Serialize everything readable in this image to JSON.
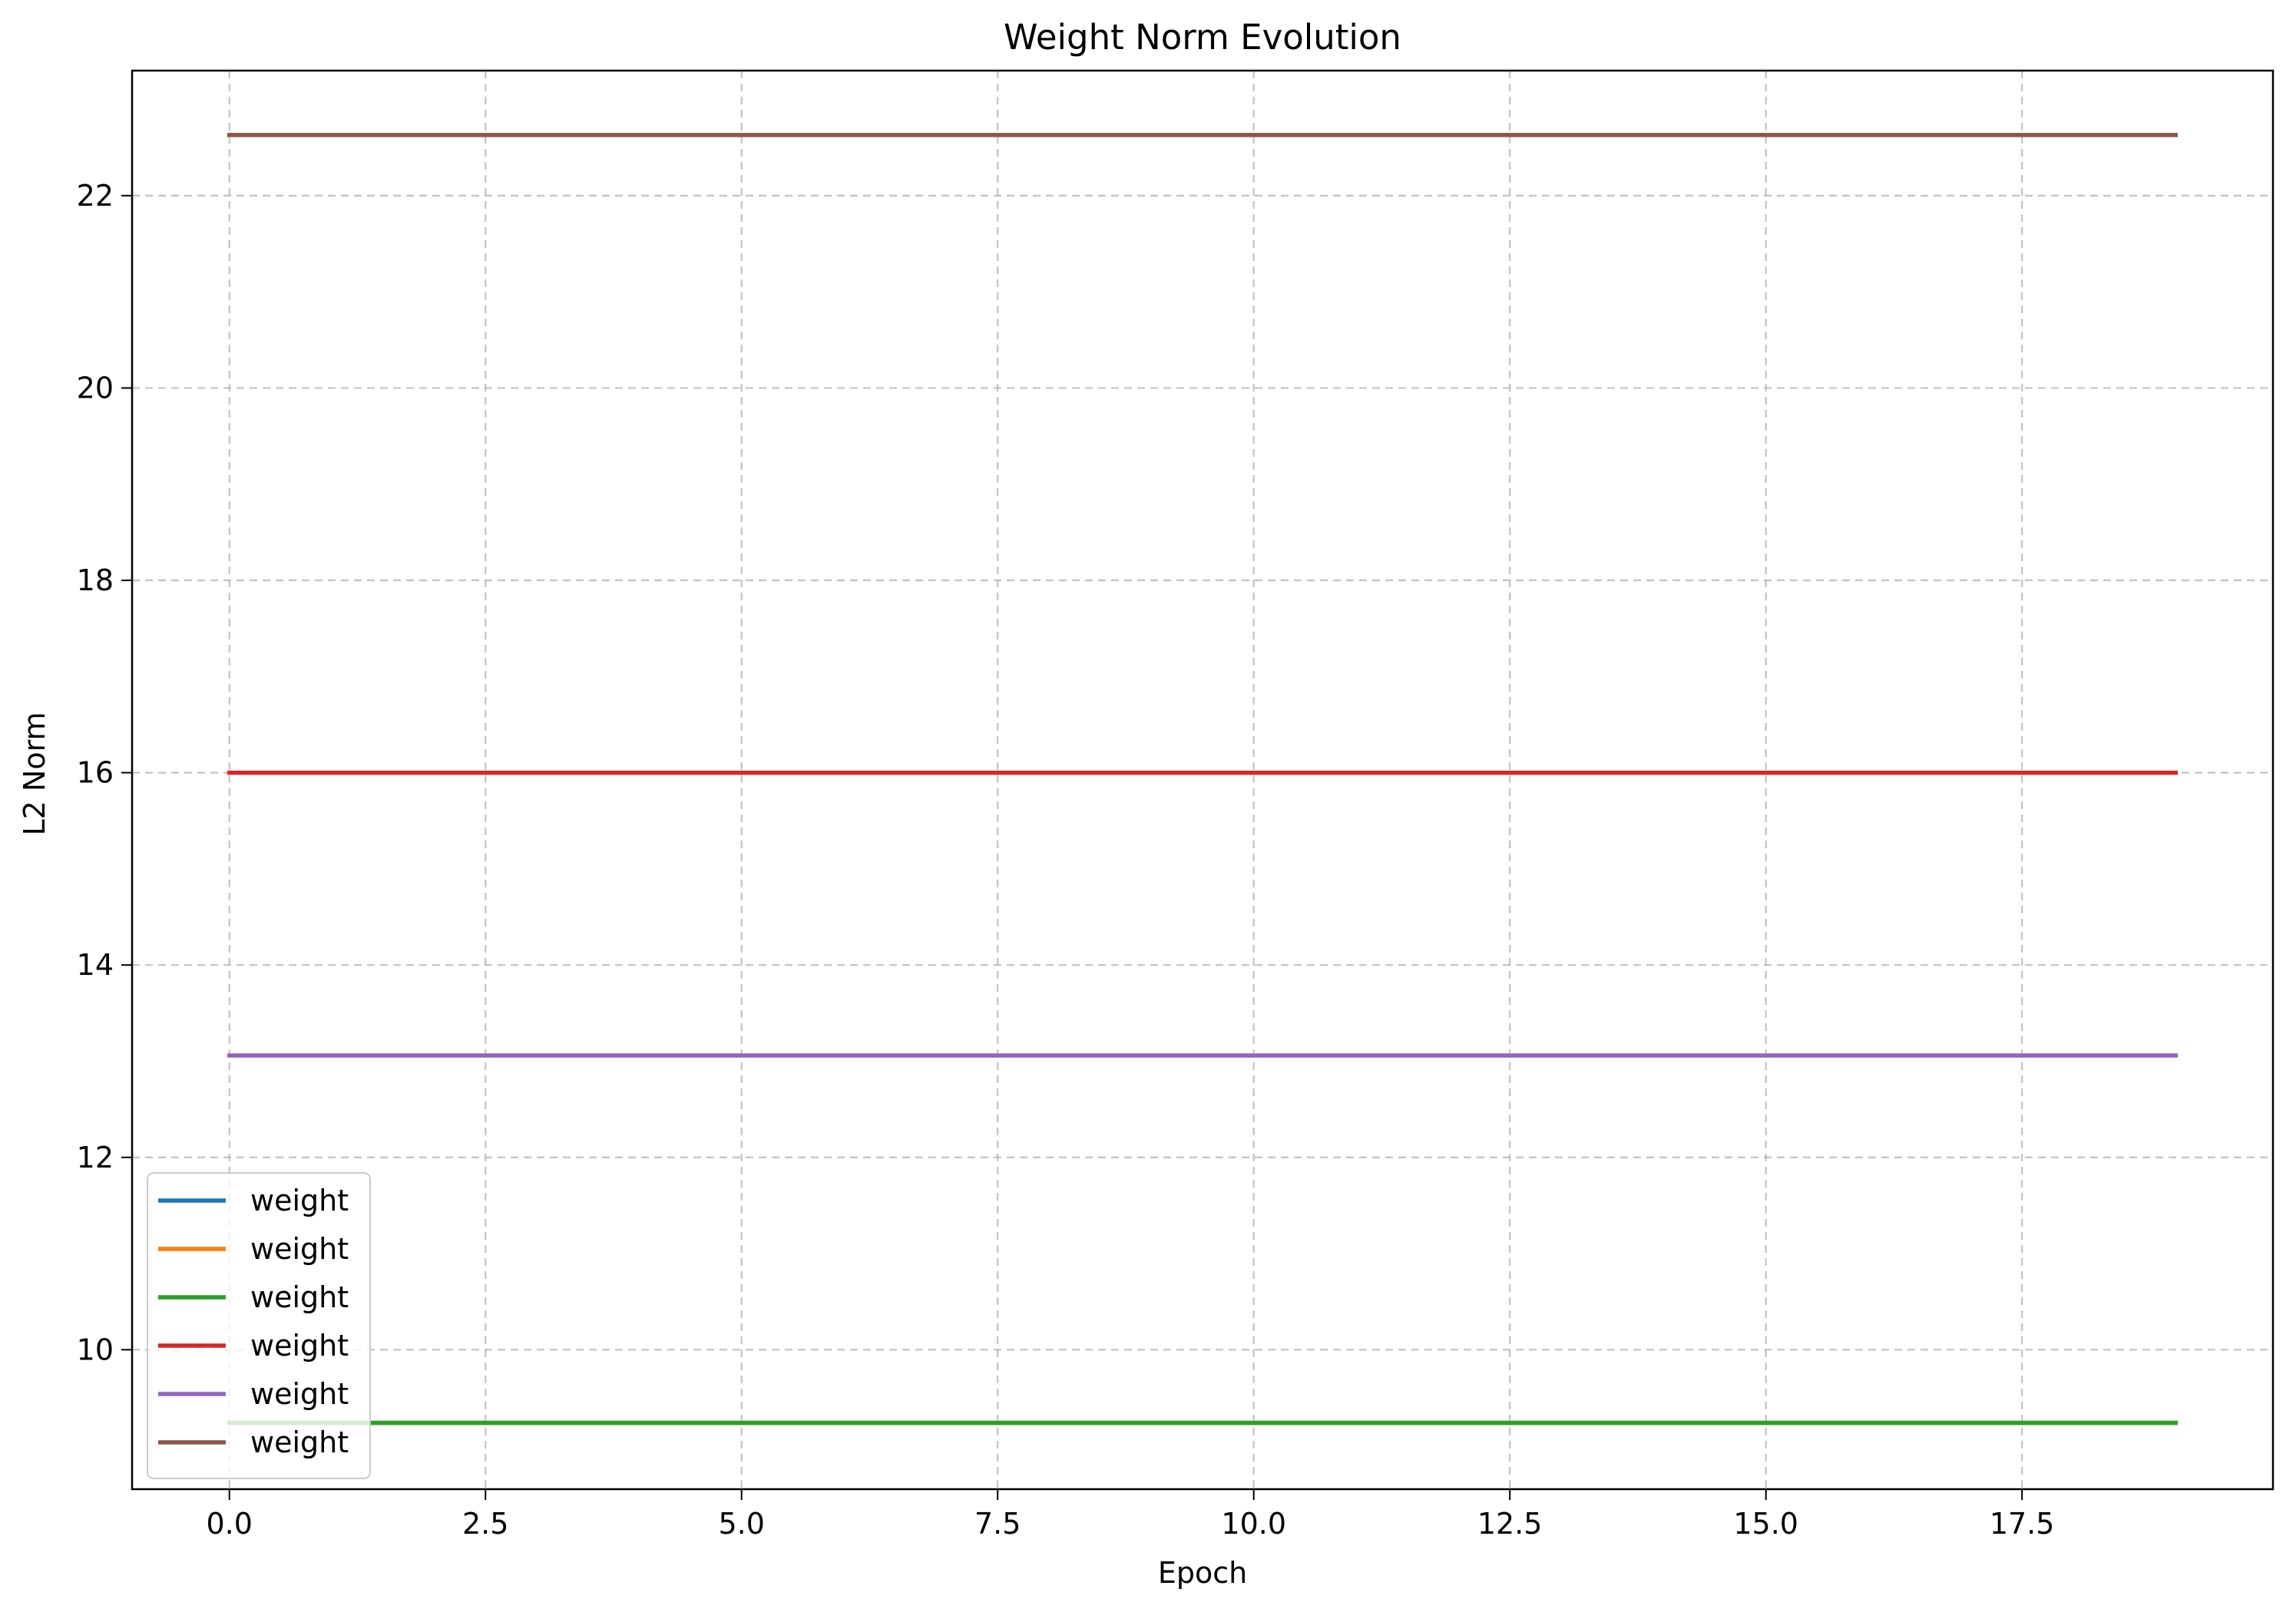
{
  "chart_data": {
    "type": "line",
    "title": "Weight Norm Evolution",
    "xlabel": "Epoch",
    "ylabel": "L2 Norm",
    "xlim": [
      -0.95,
      19.95
    ],
    "ylim": [
      8.55,
      23.3
    ],
    "xticks": [
      0.0,
      2.5,
      5.0,
      7.5,
      10.0,
      12.5,
      15.0,
      17.5
    ],
    "xtick_labels": [
      "0.0",
      "2.5",
      "5.0",
      "7.5",
      "10.0",
      "12.5",
      "15.0",
      "17.5"
    ],
    "yticks": [
      10,
      12,
      14,
      16,
      18,
      20,
      22
    ],
    "ytick_labels": [
      "10",
      "12",
      "14",
      "16",
      "18",
      "20",
      "22"
    ],
    "grid": true,
    "legend_position": "lower-left",
    "x": [
      0,
      1,
      2,
      3,
      4,
      5,
      6,
      7,
      8,
      9,
      10,
      11,
      12,
      13,
      14,
      15,
      16,
      17,
      18,
      19
    ],
    "series": [
      {
        "name": "weight",
        "color": "#1f77b4",
        "values": [
          9.24,
          9.24,
          9.24,
          9.24,
          9.24,
          9.24,
          9.24,
          9.24,
          9.24,
          9.24,
          9.24,
          9.24,
          9.24,
          9.24,
          9.24,
          9.24,
          9.24,
          9.24,
          9.24,
          9.24
        ]
      },
      {
        "name": "weight",
        "color": "#ff7f0e",
        "values": [
          9.24,
          9.24,
          9.24,
          9.24,
          9.24,
          9.24,
          9.24,
          9.24,
          9.24,
          9.24,
          9.24,
          9.24,
          9.24,
          9.24,
          9.24,
          9.24,
          9.24,
          9.24,
          9.24,
          9.24
        ]
      },
      {
        "name": "weight",
        "color": "#2ca02c",
        "values": [
          9.24,
          9.24,
          9.24,
          9.24,
          9.24,
          9.24,
          9.24,
          9.24,
          9.24,
          9.24,
          9.24,
          9.24,
          9.24,
          9.24,
          9.24,
          9.24,
          9.24,
          9.24,
          9.24,
          9.24
        ]
      },
      {
        "name": "weight",
        "color": "#d62728",
        "values": [
          16.0,
          16.0,
          16.0,
          16.0,
          16.0,
          16.0,
          16.0,
          16.0,
          16.0,
          16.0,
          16.0,
          16.0,
          16.0,
          16.0,
          16.0,
          16.0,
          16.0,
          16.0,
          16.0,
          16.0
        ]
      },
      {
        "name": "weight",
        "color": "#9467bd",
        "values": [
          13.06,
          13.06,
          13.06,
          13.06,
          13.06,
          13.06,
          13.06,
          13.06,
          13.06,
          13.06,
          13.06,
          13.06,
          13.06,
          13.06,
          13.06,
          13.06,
          13.06,
          13.06,
          13.06,
          13.06
        ]
      },
      {
        "name": "weight",
        "color": "#8c564b",
        "values": [
          22.63,
          22.63,
          22.63,
          22.63,
          22.63,
          22.63,
          22.63,
          22.63,
          22.63,
          22.63,
          22.63,
          22.63,
          22.63,
          22.63,
          22.63,
          22.63,
          22.63,
          22.63,
          22.63,
          22.63
        ]
      }
    ]
  }
}
